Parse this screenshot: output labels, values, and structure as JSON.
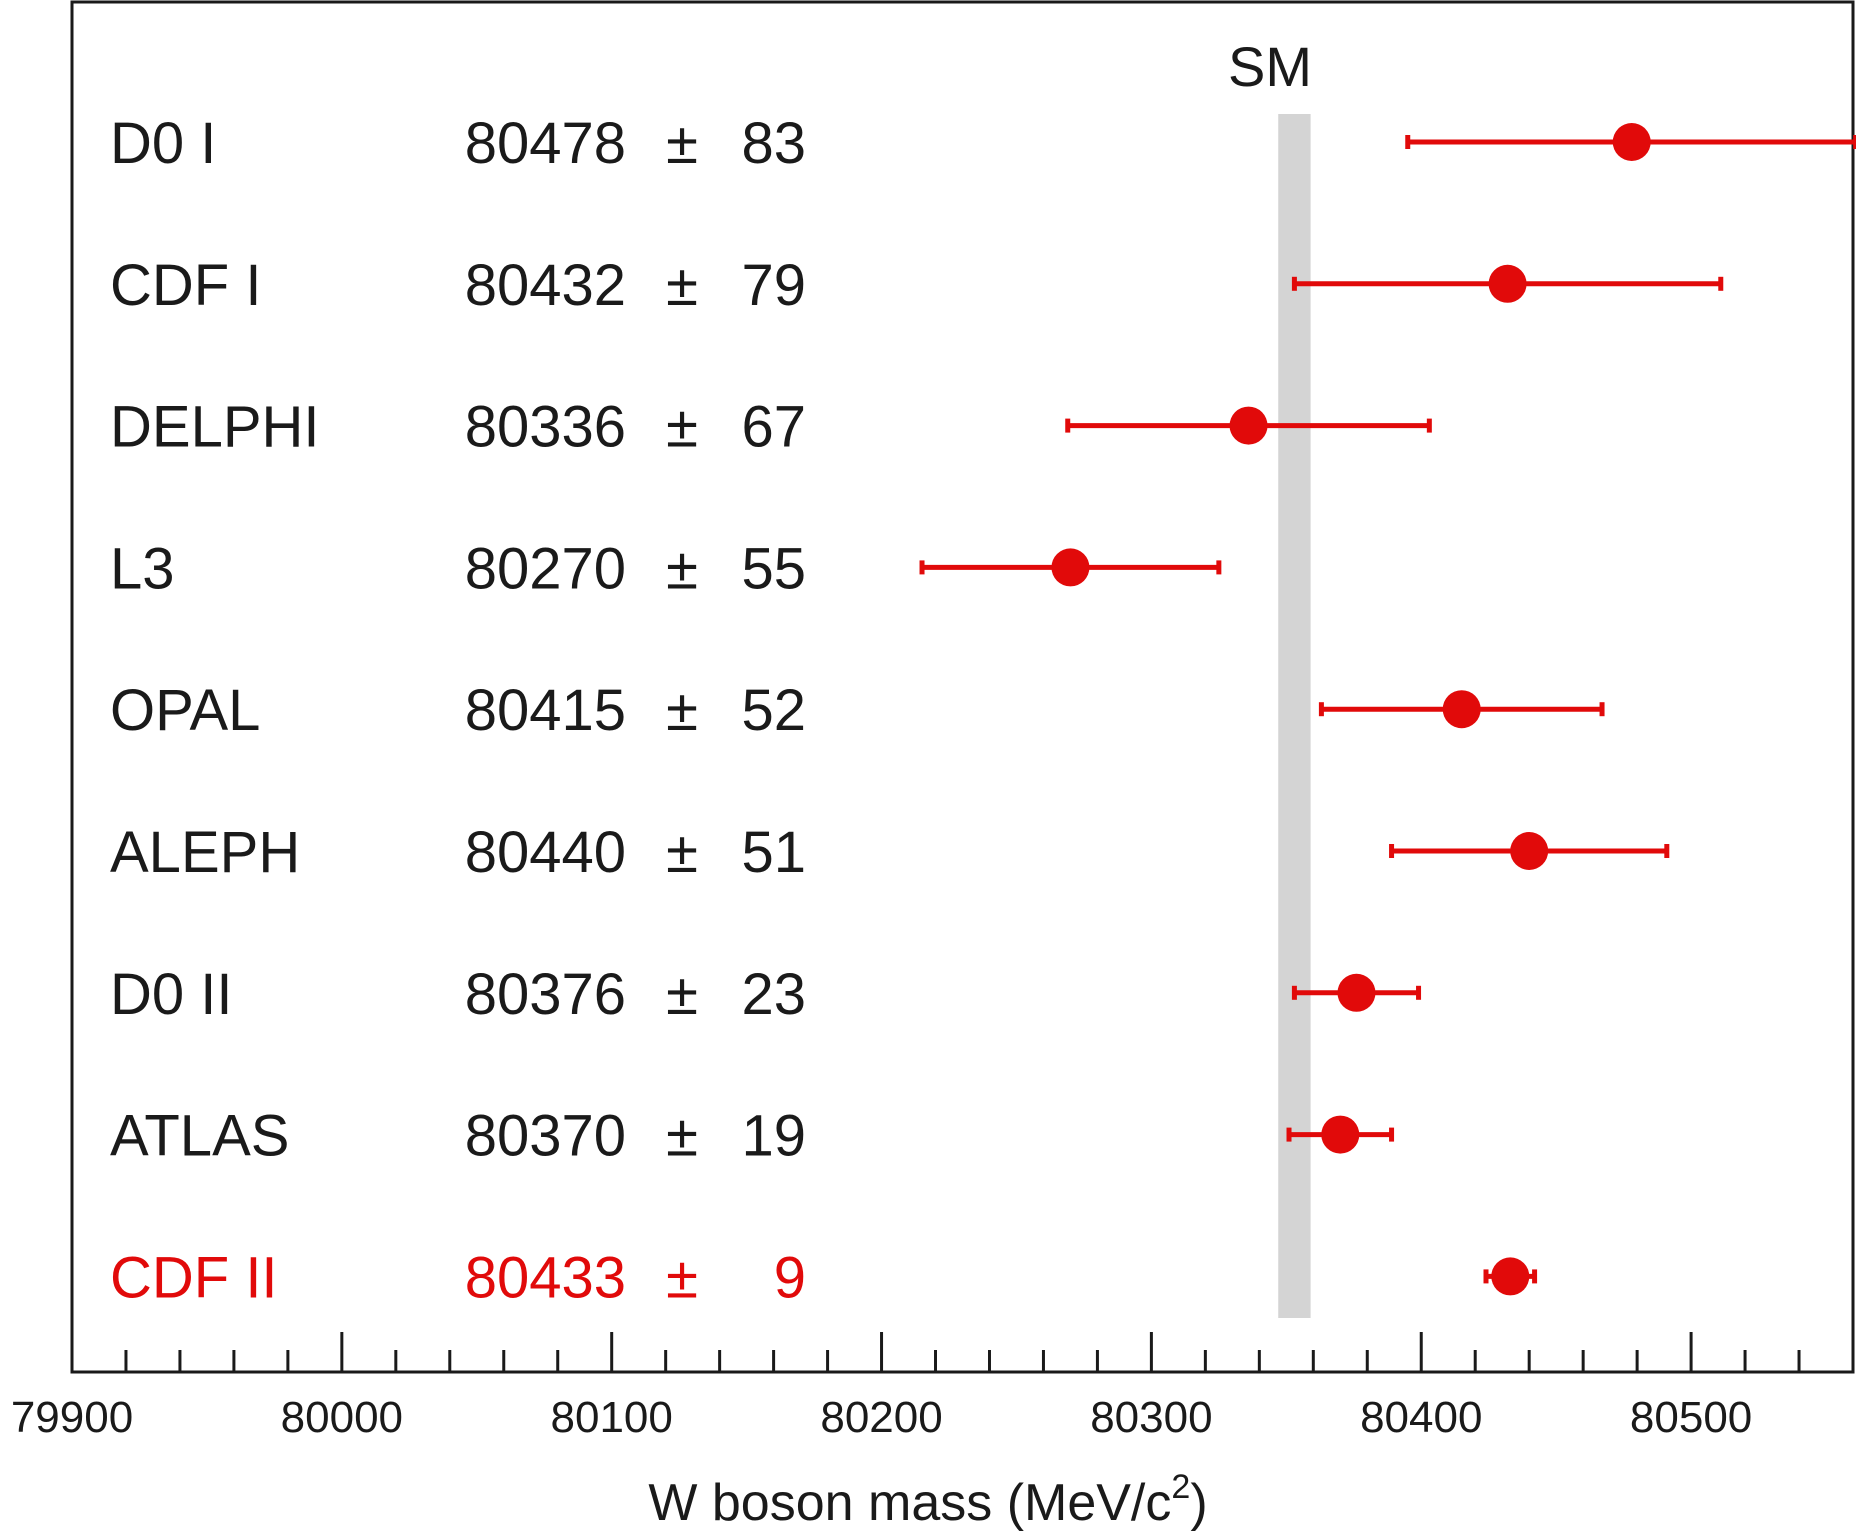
{
  "chart_data": {
    "type": "scatter",
    "xlabel_main": "W boson mass (MeV/c",
    "xlabel_sup": "2",
    "xlabel_tail": ")",
    "xlim": [
      79900,
      80560
    ],
    "xticks": [
      79900,
      80000,
      80100,
      80200,
      80300,
      80400,
      80500
    ],
    "xtick_labels": [
      "79900",
      "80000",
      "80100",
      "80200",
      "80300",
      "80400",
      "80500"
    ],
    "minor_tick_step": 20,
    "sm_band": {
      "label": "SM",
      "min": 80347,
      "max": 80359,
      "color": "#d4d4d4"
    },
    "pm_symbol": "±",
    "measurements": [
      {
        "name": "D0 I",
        "value": 80478,
        "value_label": "80478",
        "error": 83,
        "error_label": "83",
        "highlight": false
      },
      {
        "name": "CDF I",
        "value": 80432,
        "value_label": "80432",
        "error": 79,
        "error_label": "79",
        "highlight": false
      },
      {
        "name": "DELPHI",
        "value": 80336,
        "value_label": "80336",
        "error": 67,
        "error_label": "67",
        "highlight": false
      },
      {
        "name": "L3",
        "value": 80270,
        "value_label": "80270",
        "error": 55,
        "error_label": "55",
        "highlight": false
      },
      {
        "name": "OPAL",
        "value": 80415,
        "value_label": "80415",
        "error": 52,
        "error_label": "52",
        "highlight": false
      },
      {
        "name": "ALEPH",
        "value": 80440,
        "value_label": "80440",
        "error": 51,
        "error_label": "51",
        "highlight": false
      },
      {
        "name": "D0 II",
        "value": 80376,
        "value_label": "80376",
        "error": 23,
        "error_label": "23",
        "highlight": false
      },
      {
        "name": "ATLAS",
        "value": 80370,
        "value_label": "80370",
        "error": 19,
        "error_label": "19",
        "highlight": false
      },
      {
        "name": "CDF II",
        "value": 80433,
        "value_label": "80433",
        "error": 9,
        "error_label": "9",
        "highlight": true
      }
    ],
    "colors": {
      "marker": "#e10a0a",
      "text": "#1a1a1a",
      "highlight_text": "#e10a0a",
      "frame": "#1a1a1a"
    }
  }
}
